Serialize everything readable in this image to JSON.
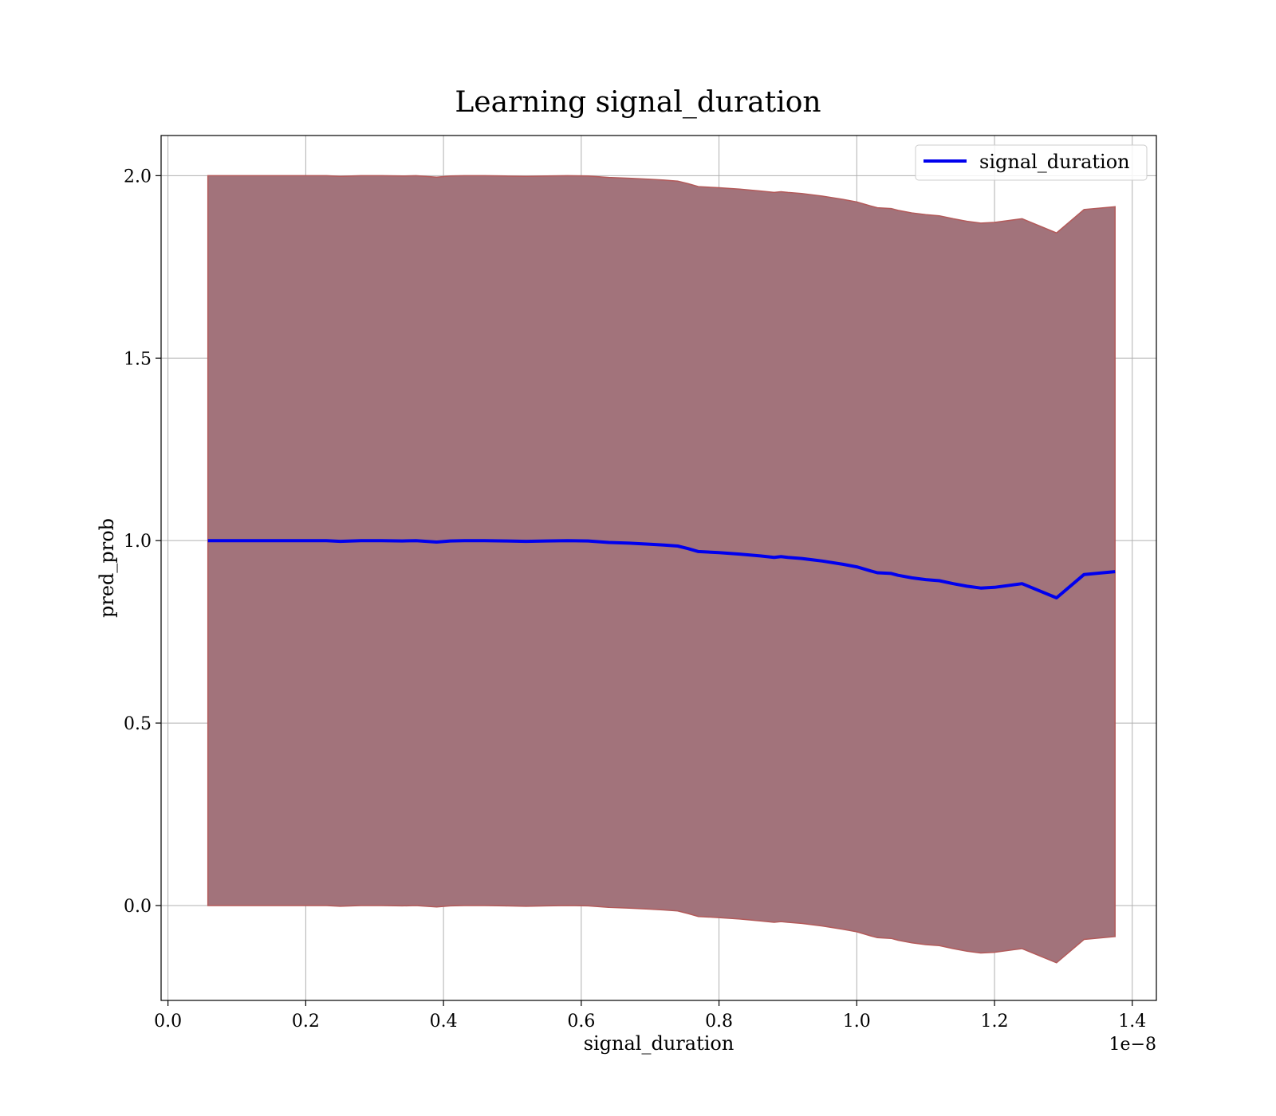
{
  "chart_data": {
    "type": "line",
    "title": "Learning signal_duration",
    "xlabel": "signal_duration",
    "ylabel": "pred_prob",
    "x_offset_label": "1e−8",
    "xlim": [
      -0.01,
      1.435
    ],
    "ylim": [
      -0.26,
      2.11
    ],
    "x_ticks": [
      0.0,
      0.2,
      0.4,
      0.6,
      0.8,
      1.0,
      1.2,
      1.4
    ],
    "x_tick_labels": [
      "0.0",
      "0.2",
      "0.4",
      "0.6",
      "0.8",
      "1.0",
      "1.2",
      "1.4"
    ],
    "y_ticks": [
      0.0,
      0.5,
      1.0,
      1.5,
      2.0
    ],
    "y_tick_labels": [
      "0.0",
      "0.5",
      "1.0",
      "1.5",
      "2.0"
    ],
    "grid": true,
    "legend_position": "top-right",
    "colors": {
      "line": "#0000ee",
      "band_fill": "#a2737b",
      "band_edge": "#b35a5a"
    },
    "series": [
      {
        "name": "signal_duration",
        "x": [
          0.058,
          0.08,
          0.1,
          0.12,
          0.15,
          0.17,
          0.2,
          0.23,
          0.25,
          0.28,
          0.31,
          0.34,
          0.36,
          0.39,
          0.41,
          0.43,
          0.46,
          0.49,
          0.52,
          0.55,
          0.58,
          0.61,
          0.64,
          0.67,
          0.7,
          0.72,
          0.74,
          0.755,
          0.77,
          0.8,
          0.83,
          0.86,
          0.88,
          0.89,
          0.9,
          0.92,
          0.95,
          0.98,
          1.0,
          1.02,
          1.03,
          1.05,
          1.06,
          1.08,
          1.1,
          1.12,
          1.14,
          1.16,
          1.18,
          1.2,
          1.24,
          1.29,
          1.33,
          1.375
        ],
        "y": [
          1.0,
          1.0,
          1.0,
          1.0,
          1.0,
          1.0,
          1.0,
          1.0,
          0.998,
          1.0,
          1.0,
          0.999,
          1.0,
          0.996,
          0.999,
          1.0,
          1.0,
          0.999,
          0.998,
          0.999,
          1.0,
          0.999,
          0.995,
          0.993,
          0.99,
          0.988,
          0.985,
          0.978,
          0.97,
          0.967,
          0.963,
          0.958,
          0.954,
          0.956,
          0.954,
          0.951,
          0.944,
          0.935,
          0.928,
          0.917,
          0.912,
          0.91,
          0.905,
          0.898,
          0.893,
          0.89,
          0.882,
          0.875,
          0.87,
          0.872,
          0.882,
          0.843,
          0.907,
          0.915
        ],
        "band_upper": [
          2.0,
          2.0,
          2.0,
          2.0,
          2.0,
          2.0,
          2.0,
          2.0,
          1.998,
          2.0,
          2.0,
          1.999,
          2.0,
          1.996,
          1.999,
          2.0,
          2.0,
          1.999,
          1.998,
          1.999,
          2.0,
          1.999,
          1.995,
          1.993,
          1.99,
          1.988,
          1.985,
          1.978,
          1.97,
          1.967,
          1.963,
          1.958,
          1.954,
          1.956,
          1.954,
          1.951,
          1.944,
          1.935,
          1.928,
          1.917,
          1.912,
          1.91,
          1.905,
          1.898,
          1.893,
          1.89,
          1.882,
          1.875,
          1.87,
          1.872,
          1.882,
          1.843,
          1.907,
          1.915
        ],
        "band_lower": [
          0.0,
          0.0,
          0.0,
          0.0,
          0.0,
          0.0,
          0.0,
          0.0,
          -0.002,
          0.0,
          0.0,
          -0.001,
          0.0,
          -0.004,
          -0.001,
          0.0,
          0.0,
          -0.001,
          -0.002,
          -0.001,
          0.0,
          -0.001,
          -0.005,
          -0.007,
          -0.01,
          -0.012,
          -0.015,
          -0.022,
          -0.03,
          -0.033,
          -0.037,
          -0.042,
          -0.046,
          -0.044,
          -0.046,
          -0.049,
          -0.056,
          -0.065,
          -0.072,
          -0.083,
          -0.088,
          -0.09,
          -0.095,
          -0.102,
          -0.107,
          -0.11,
          -0.118,
          -0.125,
          -0.13,
          -0.128,
          -0.118,
          -0.157,
          -0.093,
          -0.085
        ]
      }
    ]
  }
}
